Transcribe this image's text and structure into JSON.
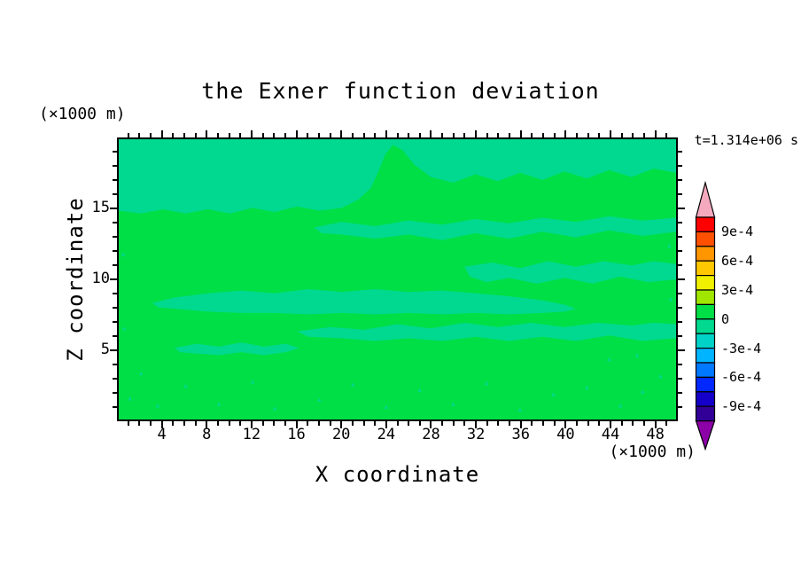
{
  "title": "the Exner function deviation",
  "time_label": "t=1.314e+06 s",
  "axes": {
    "x": {
      "label": "X coordinate",
      "unit": "(×1000 m)",
      "min": 0,
      "max": 50,
      "minor_step": 1,
      "major_step": 4,
      "tick_labels": [
        4,
        8,
        12,
        16,
        20,
        24,
        28,
        32,
        36,
        40,
        44,
        48
      ]
    },
    "z": {
      "label": "Z coordinate",
      "unit": "(×1000 m)",
      "min": 0,
      "max": 20,
      "minor_step": 1,
      "major_step": 5,
      "tick_labels": [
        5,
        10,
        15
      ]
    }
  },
  "colorbar": {
    "tick_labels": [
      "9e-4",
      "6e-4",
      "3e-4",
      "0",
      "-3e-4",
      "-6e-4",
      "-9e-4"
    ],
    "segments": [
      "#FF0000",
      "#FF5000",
      "#FF9600",
      "#FFC800",
      "#F0F000",
      "#A0E600",
      "#00DF46",
      "#00D98F",
      "#00D2C8",
      "#00B4FF",
      "#0078FF",
      "#0028FF",
      "#1400C8",
      "#320096"
    ],
    "arrow_top_color": "#F5A9BE",
    "arrow_bottom_color": "#8C00A8"
  },
  "chart_data": {
    "type": "heatmap",
    "title": "the Exner function deviation",
    "xlabel": "X coordinate",
    "ylabel": "Z coordinate",
    "x_unit": "(×1000 m)",
    "y_unit": "(×1000 m)",
    "time_annotation": "t=1.314e+06 s",
    "xlim": [
      0,
      50
    ],
    "ylim": [
      0,
      20
    ],
    "contour_interval": 0.00015,
    "value_range_shown": [
      -0.00105,
      0.00105
    ],
    "labeled_levels": [
      0.0009,
      0.0006,
      0.0003,
      0,
      -0.0003,
      -0.0006,
      -0.0009
    ],
    "base_band": {
      "range": "0 to 1.5e-4",
      "color": "#00DF46"
    },
    "negative_band": {
      "range": "-1.5e-4 to 0",
      "color": "#00D98F"
    },
    "regions": [
      {
        "name": "top-band",
        "points": [
          [
            0,
            20
          ],
          [
            50,
            20
          ],
          [
            50,
            17.6
          ],
          [
            48,
            17.9
          ],
          [
            46,
            17.3
          ],
          [
            44,
            17.8
          ],
          [
            42,
            17.2
          ],
          [
            40,
            17.7
          ],
          [
            38,
            17.1
          ],
          [
            36,
            17.6
          ],
          [
            34,
            17.0
          ],
          [
            32,
            17.5
          ],
          [
            30,
            16.9
          ],
          [
            28,
            17.3
          ],
          [
            26.5,
            18.2
          ],
          [
            25.5,
            19.2
          ],
          [
            24.6,
            19.6
          ],
          [
            23.9,
            18.9
          ],
          [
            23.3,
            17.7
          ],
          [
            22.6,
            16.5
          ],
          [
            21.5,
            15.7
          ],
          [
            20,
            15.1
          ],
          [
            18,
            14.9
          ],
          [
            16,
            15.2
          ],
          [
            14,
            14.8
          ],
          [
            12,
            15.1
          ],
          [
            10,
            14.7
          ],
          [
            8,
            15.0
          ],
          [
            6,
            14.7
          ],
          [
            4,
            15.0
          ],
          [
            2,
            14.7
          ],
          [
            0,
            14.9
          ]
        ]
      },
      {
        "name": "upper-mid-band",
        "points": [
          [
            17.5,
            13.7
          ],
          [
            20,
            14.1
          ],
          [
            23,
            13.8
          ],
          [
            26,
            14.2
          ],
          [
            29,
            13.9
          ],
          [
            32,
            14.3
          ],
          [
            35,
            14.0
          ],
          [
            38,
            14.4
          ],
          [
            41,
            14.1
          ],
          [
            44,
            14.5
          ],
          [
            47,
            14.2
          ],
          [
            50,
            14.4
          ],
          [
            50,
            13.4
          ],
          [
            47,
            13.1
          ],
          [
            44,
            13.5
          ],
          [
            41,
            13.0
          ],
          [
            38,
            13.4
          ],
          [
            35,
            12.9
          ],
          [
            32,
            13.3
          ],
          [
            29,
            12.8
          ],
          [
            26,
            13.2
          ],
          [
            23,
            12.9
          ],
          [
            20,
            13.2
          ],
          [
            18.2,
            13.3
          ]
        ]
      },
      {
        "name": "right-mid-band",
        "points": [
          [
            31,
            10.9
          ],
          [
            33.5,
            11.2
          ],
          [
            36,
            10.8
          ],
          [
            38.5,
            11.3
          ],
          [
            41,
            10.9
          ],
          [
            43.5,
            11.3
          ],
          [
            46,
            11.0
          ],
          [
            48,
            11.3
          ],
          [
            50,
            11.1
          ],
          [
            50,
            10.0
          ],
          [
            47.5,
            9.8
          ],
          [
            45,
            10.2
          ],
          [
            42.5,
            9.7
          ],
          [
            40,
            10.1
          ],
          [
            37.5,
            9.7
          ],
          [
            35,
            10.1
          ],
          [
            33,
            9.8
          ],
          [
            31.5,
            10.2
          ]
        ]
      },
      {
        "name": "central-lens",
        "points": [
          [
            3,
            8.3
          ],
          [
            5,
            8.7
          ],
          [
            8,
            9.0
          ],
          [
            11,
            9.2
          ],
          [
            14,
            9.0
          ],
          [
            17,
            9.3
          ],
          [
            20,
            9.1
          ],
          [
            23,
            9.3
          ],
          [
            26,
            9.1
          ],
          [
            29,
            9.2
          ],
          [
            32,
            9.0
          ],
          [
            35,
            8.8
          ],
          [
            38,
            8.5
          ],
          [
            40,
            8.2
          ],
          [
            41,
            7.9
          ],
          [
            40,
            7.7
          ],
          [
            38,
            7.6
          ],
          [
            35,
            7.5
          ],
          [
            32,
            7.6
          ],
          [
            29,
            7.5
          ],
          [
            26,
            7.6
          ],
          [
            23,
            7.5
          ],
          [
            20,
            7.6
          ],
          [
            17,
            7.5
          ],
          [
            14,
            7.6
          ],
          [
            11,
            7.6
          ],
          [
            8,
            7.7
          ],
          [
            5,
            7.9
          ],
          [
            3.6,
            8.0
          ]
        ]
      },
      {
        "name": "lower-band",
        "points": [
          [
            16,
            6.3
          ],
          [
            19,
            6.6
          ],
          [
            22,
            6.4
          ],
          [
            25,
            6.8
          ],
          [
            28,
            6.5
          ],
          [
            31,
            6.9
          ],
          [
            34,
            6.6
          ],
          [
            37,
            6.9
          ],
          [
            40,
            6.6
          ],
          [
            43,
            6.9
          ],
          [
            46,
            6.7
          ],
          [
            48,
            6.9
          ],
          [
            50,
            6.8
          ],
          [
            50,
            5.8
          ],
          [
            47,
            5.6
          ],
          [
            44,
            6.0
          ],
          [
            41,
            5.6
          ],
          [
            38,
            5.9
          ],
          [
            35,
            5.6
          ],
          [
            32,
            5.9
          ],
          [
            29,
            5.6
          ],
          [
            26,
            5.8
          ],
          [
            23,
            5.6
          ],
          [
            20,
            5.8
          ],
          [
            17,
            5.9
          ]
        ]
      },
      {
        "name": "small-left-blob",
        "points": [
          [
            5,
            5.1
          ],
          [
            7,
            5.4
          ],
          [
            9,
            5.2
          ],
          [
            11,
            5.5
          ],
          [
            13,
            5.2
          ],
          [
            15,
            5.4
          ],
          [
            16.2,
            5.1
          ],
          [
            15,
            4.8
          ],
          [
            13,
            4.6
          ],
          [
            11,
            4.8
          ],
          [
            9,
            4.6
          ],
          [
            7,
            4.7
          ],
          [
            5.5,
            4.8
          ]
        ]
      }
    ],
    "specks": [
      [
        6,
        2.4
      ],
      [
        9,
        1.1
      ],
      [
        12,
        2.7
      ],
      [
        14,
        0.8
      ],
      [
        18,
        1.4
      ],
      [
        21,
        2.5
      ],
      [
        24,
        0.9
      ],
      [
        27,
        2.1
      ],
      [
        30,
        1.1
      ],
      [
        33,
        2.6
      ],
      [
        36,
        0.7
      ],
      [
        39,
        1.8
      ],
      [
        42,
        2.3
      ],
      [
        45,
        1.0
      ],
      [
        47,
        2.0
      ],
      [
        48.6,
        3.1
      ],
      [
        49.5,
        8.6
      ],
      [
        49.4,
        12.4
      ],
      [
        0.5,
        6.5
      ],
      [
        0.4,
        11.8
      ],
      [
        2,
        3.3
      ],
      [
        1,
        1.5
      ],
      [
        3.5,
        1.0
      ],
      [
        44,
        4.3
      ],
      [
        46.5,
        4.6
      ]
    ]
  }
}
